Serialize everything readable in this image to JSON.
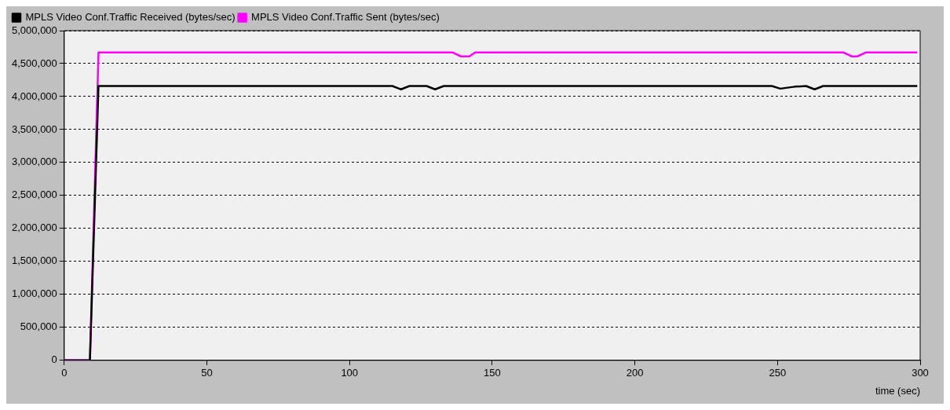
{
  "chart_data": {
    "type": "line",
    "xlabel": "time (sec)",
    "xlim": [
      0,
      300
    ],
    "xticks": [
      0,
      50,
      100,
      150,
      200,
      250,
      300
    ],
    "ylim": [
      0,
      5000000
    ],
    "yticks": [
      0,
      {
        "value": 500000,
        "label": "500,000"
      },
      {
        "value": 1000000,
        "label": "1,000,000"
      },
      {
        "value": 1500000,
        "label": "1,500,000"
      },
      {
        "value": 2000000,
        "label": "2,000,000"
      },
      {
        "value": 2500000,
        "label": "2,500,000"
      },
      {
        "value": 3000000,
        "label": "3,000,000"
      },
      {
        "value": 3500000,
        "label": "3,500,000"
      },
      {
        "value": 4000000,
        "label": "4,000,000"
      },
      {
        "value": 4500000,
        "label": "4,500,000"
      },
      {
        "value": 5000000,
        "label": "5,000,000"
      }
    ],
    "grid": "y",
    "legend": "top left",
    "marker": "none",
    "line_style": "solid",
    "series": [
      {
        "name": "MPLS Video Conf.Traffic Received (bytes/sec)",
        "color": "#000000",
        "x": [
          0,
          9,
          12,
          115,
          118,
          121,
          127,
          130,
          133,
          248,
          251,
          256,
          260,
          263,
          266,
          299
        ],
        "values": [
          0,
          0,
          4160000,
          4160000,
          4110000,
          4160000,
          4160000,
          4110000,
          4160000,
          4160000,
          4120000,
          4150000,
          4160000,
          4110000,
          4160000,
          4160000
        ]
      },
      {
        "name": "MPLS Video Conf.Traffic Sent (bytes/sec)",
        "color": "#ff00ff",
        "x": [
          0,
          9,
          12,
          136,
          139,
          142,
          144,
          273,
          276,
          278,
          281,
          299
        ],
        "values": [
          0,
          0,
          4670000,
          4670000,
          4610000,
          4610000,
          4670000,
          4670000,
          4610000,
          4610000,
          4670000,
          4670000
        ]
      }
    ]
  }
}
